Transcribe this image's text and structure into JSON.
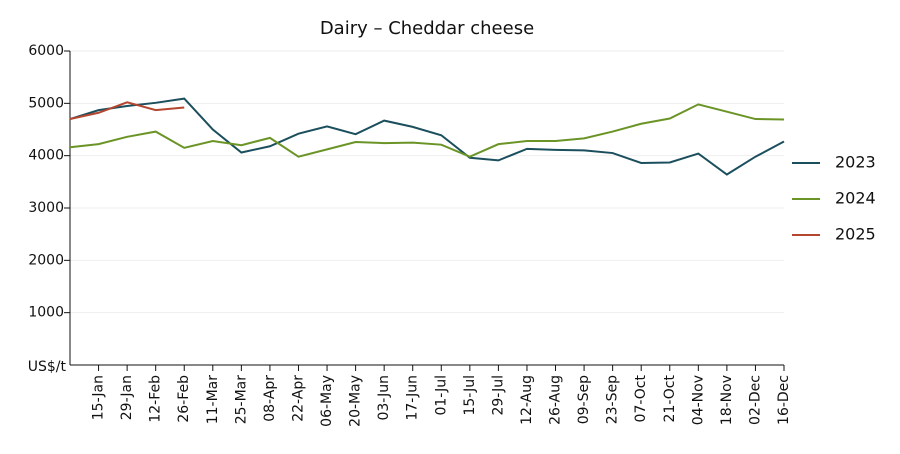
{
  "chart_data": {
    "type": "line",
    "title": "Dairy – Cheddar cheese",
    "y_label": "US$/t",
    "categories": [
      null,
      "15-Jan",
      "29-Jan",
      "12-Feb",
      "26-Feb",
      "11-Mar",
      "25-Mar",
      "08-Apr",
      "22-Apr",
      "06-May",
      "20-May",
      "03-Jun",
      "17-Jun",
      "01-Jul",
      "15-Jul",
      "29-Jul",
      "12-Aug",
      "26-Aug",
      "09-Sep",
      "23-Sep",
      "07-Oct",
      "21-Oct",
      "04-Nov",
      "18-Nov",
      "02-Dec",
      "16-Dec"
    ],
    "series": [
      {
        "name": "2023",
        "color": "#1b4f5e",
        "values": [
          4700,
          4870,
          4950,
          5010,
          5090,
          4500,
          4060,
          4180,
          4420,
          4560,
          4410,
          4670,
          4550,
          4390,
          3960,
          3910,
          4130,
          4110,
          4100,
          4050,
          3860,
          3870,
          4040,
          3640,
          3980,
          4270
        ]
      },
      {
        "name": "2024",
        "color": "#6b9427",
        "values": [
          4160,
          4220,
          4360,
          4460,
          4150,
          4280,
          4200,
          4340,
          3980,
          4120,
          4260,
          4240,
          4250,
          4210,
          3980,
          4220,
          4280,
          4280,
          4330,
          4460,
          4610,
          4710,
          4980,
          4840,
          4700,
          4690
        ]
      },
      {
        "name": "2025",
        "color": "#b4462f",
        "values": [
          4700,
          4820,
          5020,
          4870,
          4920,
          null,
          null,
          null,
          null,
          null,
          null,
          null,
          null,
          null,
          null,
          null,
          null,
          null,
          null,
          null,
          null,
          null,
          null,
          null,
          null,
          null
        ]
      }
    ],
    "ylim": [
      0,
      6000
    ],
    "yticks": [
      1000,
      2000,
      3000,
      4000,
      5000,
      6000
    ],
    "grid": true,
    "legend": "right"
  }
}
